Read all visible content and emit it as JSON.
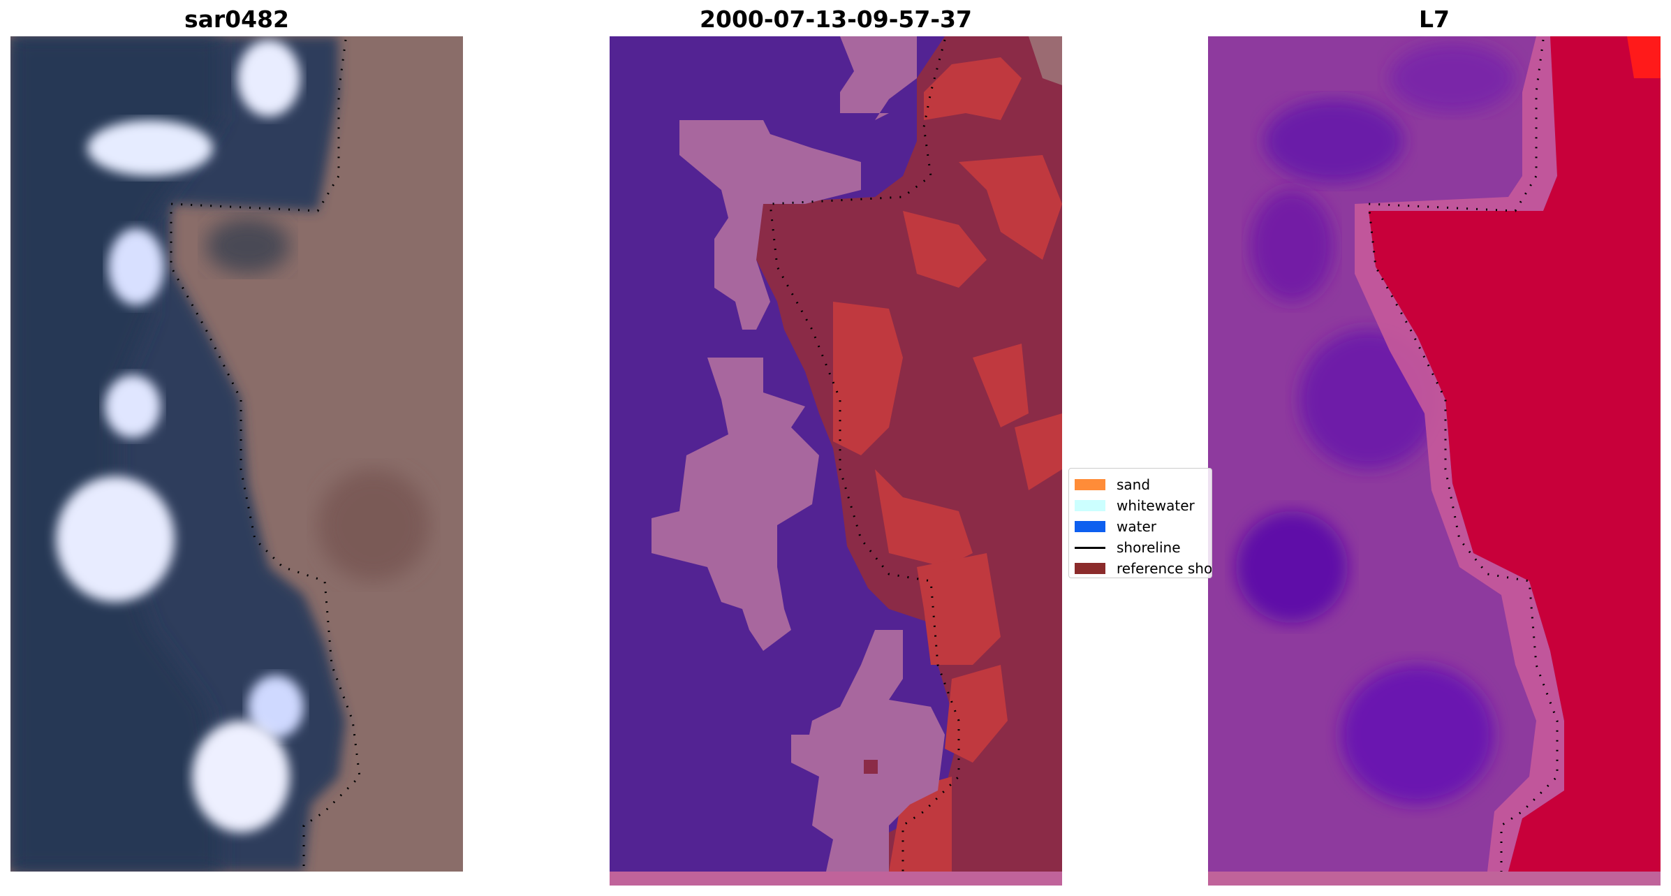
{
  "panels": [
    {
      "title": "sar0482",
      "kind": "rgb-image"
    },
    {
      "title": "2000-07-13-09-57-37",
      "kind": "classified-image"
    },
    {
      "title": "L7",
      "kind": "index-image"
    }
  ],
  "legend": {
    "items": [
      {
        "label": "sand",
        "color": "#ff8c38",
        "kind": "patch"
      },
      {
        "label": "whitewater",
        "color": "#ccffff",
        "kind": "patch"
      },
      {
        "label": "water",
        "color": "#0d5fef",
        "kind": "patch"
      },
      {
        "label": "shoreline",
        "color": "#000000",
        "kind": "line"
      },
      {
        "label": "reference shoreline buffer",
        "color": "#8b2b2b",
        "kind": "patch"
      }
    ]
  },
  "colors": {
    "rgb_water": "#2f3f5f",
    "rgb_land": "#8c6f6a",
    "rgb_foam": "#dfe6ff",
    "class_water": "#532393",
    "class_whitewater": "#a8679e",
    "class_buffer": "#8b2b47",
    "class_sand": "#c0393f",
    "index_low": "#8f3aa0",
    "index_high": "#c8003a",
    "bottom_strip": "#c0639a"
  }
}
